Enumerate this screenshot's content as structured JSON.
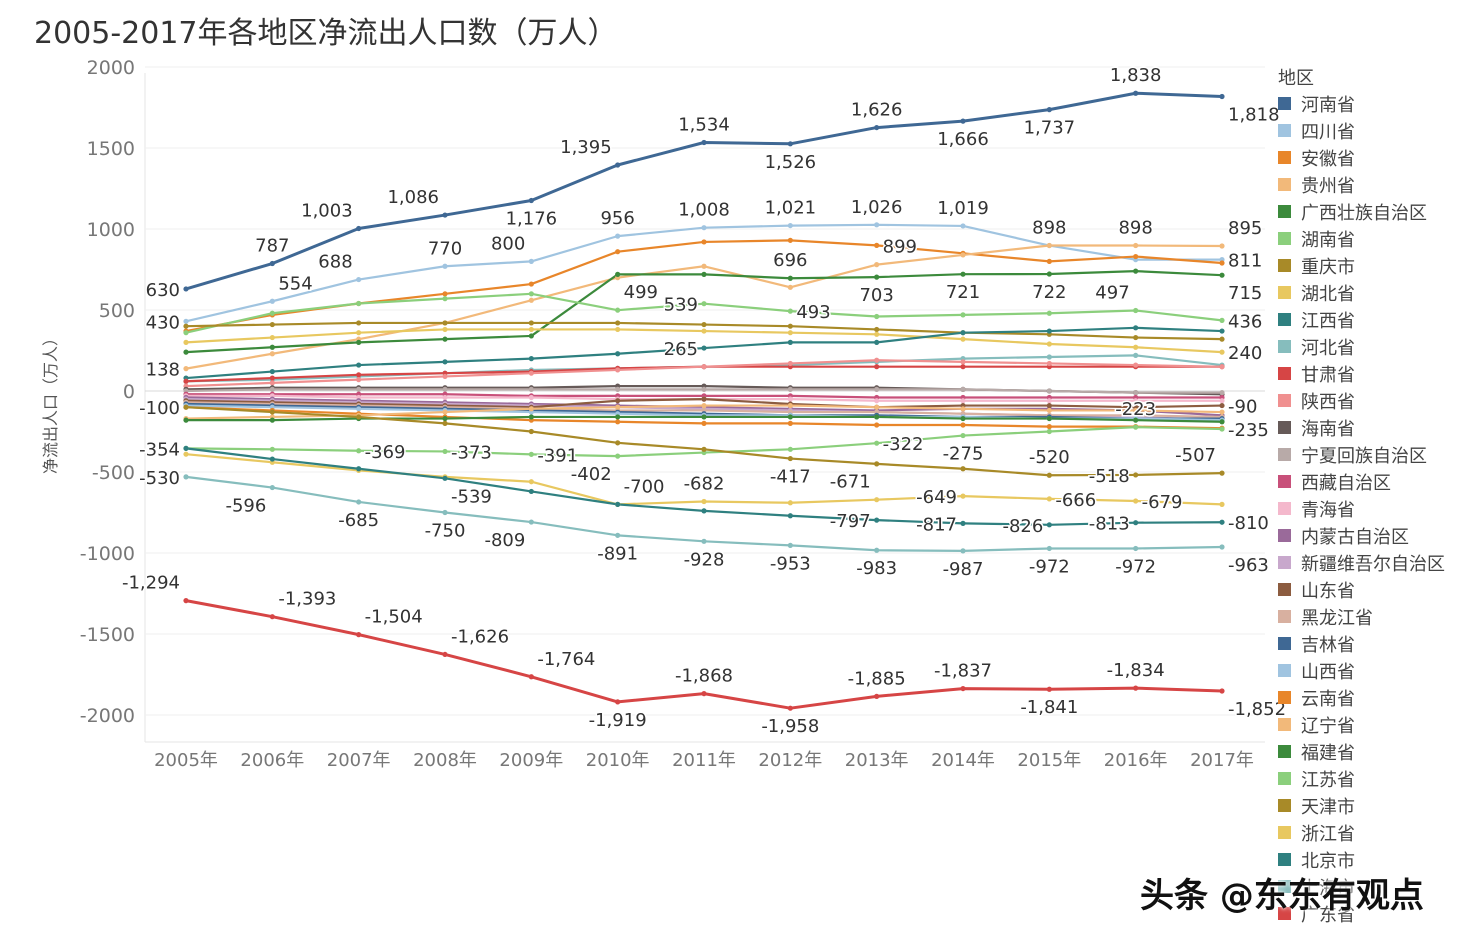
{
  "chart_data": {
    "type": "line",
    "title": "2005-2017年各地区净流出人口数（万人）",
    "ylabel": "净流出人口（万人）",
    "xlabel": "",
    "ylim": [
      -2100,
      2000
    ],
    "yticks": [
      2000,
      1500,
      1000,
      500,
      0,
      -500,
      -1000,
      -1500,
      -2000
    ],
    "grid": true,
    "legend_title": "地区",
    "legend_position": "right",
    "categories": [
      "2005年",
      "2006年",
      "2007年",
      "2008年",
      "2009年",
      "2010年",
      "2011年",
      "2012年",
      "2013年",
      "2014年",
      "2015年",
      "2016年",
      "2017年"
    ],
    "series": [
      {
        "name": "河南省",
        "color": "#3f6894",
        "values": [
          630,
          787,
          1003,
          1086,
          1176,
          1395,
          1534,
          1526,
          1626,
          1666,
          1737,
          1838,
          1818
        ]
      },
      {
        "name": "四川省",
        "color": "#a0c4e0",
        "values": [
          430,
          554,
          688,
          770,
          800,
          956,
          1008,
          1021,
          1026,
          1019,
          898,
          811,
          811
        ]
      },
      {
        "name": "安徽省",
        "color": "#e8862a",
        "values": [
          370,
          470,
          540,
          600,
          660,
          860,
          920,
          930,
          899,
          850,
          800,
          830,
          790
        ]
      },
      {
        "name": "贵州省",
        "color": "#f2b97a",
        "values": [
          138,
          230,
          320,
          420,
          560,
          700,
          770,
          640,
          780,
          840,
          898,
          898,
          895
        ]
      },
      {
        "name": "广西壮族自治区",
        "color": "#3c8a3c",
        "values": [
          240,
          270,
          300,
          320,
          340,
          720,
          720,
          696,
          703,
          721,
          722,
          740,
          715
        ]
      },
      {
        "name": "湖南省",
        "color": "#8bcf7c",
        "values": [
          360,
          480,
          540,
          570,
          600,
          499,
          539,
          493,
          460,
          470,
          480,
          497,
          436
        ]
      },
      {
        "name": "重庆市",
        "color": "#a88a28",
        "values": [
          400,
          410,
          420,
          420,
          420,
          420,
          410,
          400,
          380,
          360,
          350,
          330,
          320
        ]
      },
      {
        "name": "湖北省",
        "color": "#e8c860",
        "values": [
          300,
          330,
          360,
          380,
          380,
          380,
          370,
          360,
          350,
          320,
          290,
          270,
          240
        ]
      },
      {
        "name": "江西省",
        "color": "#2f8080",
        "values": [
          80,
          120,
          160,
          180,
          200,
          230,
          265,
          300,
          300,
          360,
          370,
          390,
          370
        ]
      },
      {
        "name": "河北省",
        "color": "#86bdbd",
        "values": [
          60,
          70,
          90,
          110,
          130,
          140,
          150,
          160,
          180,
          200,
          210,
          220,
          160
        ]
      },
      {
        "name": "甘肃省",
        "color": "#d64545",
        "values": [
          60,
          80,
          100,
          110,
          120,
          140,
          150,
          150,
          150,
          150,
          150,
          150,
          150
        ]
      },
      {
        "name": "陕西省",
        "color": "#f09090",
        "values": [
          30,
          50,
          70,
          90,
          110,
          130,
          150,
          170,
          190,
          180,
          170,
          160,
          150
        ]
      },
      {
        "name": "海南省",
        "color": "#665a58",
        "values": [
          10,
          20,
          20,
          20,
          20,
          30,
          30,
          20,
          20,
          10,
          0,
          -10,
          -20
        ]
      },
      {
        "name": "宁夏回族自治区",
        "color": "#b8aaa8",
        "values": [
          0,
          10,
          10,
          10,
          10,
          10,
          10,
          10,
          10,
          10,
          0,
          -10,
          -10
        ]
      },
      {
        "name": "西藏自治区",
        "color": "#c8507a",
        "values": [
          -20,
          -20,
          -20,
          -20,
          -30,
          -30,
          -30,
          -30,
          -40,
          -40,
          -40,
          -40,
          -40
        ]
      },
      {
        "name": "青海省",
        "color": "#f4b8cc",
        "values": [
          -30,
          -30,
          -40,
          -40,
          -40,
          -50,
          -50,
          -50,
          -60,
          -60,
          -60,
          -60,
          -60
        ]
      },
      {
        "name": "内蒙古自治区",
        "color": "#9a6a9a",
        "values": [
          -40,
          -50,
          -60,
          -70,
          -80,
          -90,
          -100,
          -110,
          -120,
          -110,
          -110,
          -120,
          -150
        ]
      },
      {
        "name": "新疆维吾尔自治区",
        "color": "#c8a8cc",
        "values": [
          -50,
          -60,
          -70,
          -80,
          -90,
          -100,
          -110,
          -120,
          -130,
          -140,
          -150,
          -160,
          -180
        ]
      },
      {
        "name": "山东省",
        "color": "#8c5c40",
        "values": [
          -60,
          -70,
          -80,
          -90,
          -100,
          -60,
          -50,
          -80,
          -100,
          -90,
          -90,
          -100,
          -90
        ]
      },
      {
        "name": "黑龙江省",
        "color": "#d8b0a0",
        "values": [
          -70,
          -80,
          -90,
          -100,
          -110,
          -120,
          -120,
          -130,
          -130,
          -140,
          -150,
          -150,
          -160
        ]
      },
      {
        "name": "吉林省",
        "color": "#3f6894",
        "values": [
          -80,
          -90,
          -100,
          -110,
          -120,
          -130,
          -140,
          -150,
          -150,
          -160,
          -160,
          -170,
          -170
        ]
      },
      {
        "name": "山西省",
        "color": "#a0c4e0",
        "values": [
          -90,
          -100,
          -110,
          -120,
          -130,
          -140,
          -150,
          -150,
          -160,
          -160,
          -170,
          -170,
          -180
        ]
      },
      {
        "name": "云南省",
        "color": "#e8862a",
        "values": [
          -100,
          -120,
          -140,
          -160,
          -180,
          -190,
          -200,
          -200,
          -210,
          -210,
          -220,
          -220,
          -230
        ]
      },
      {
        "name": "辽宁省",
        "color": "#f2b97a",
        "values": [
          -170,
          -160,
          -150,
          -130,
          -110,
          -100,
          -90,
          -90,
          -100,
          -110,
          -120,
          -120,
          -130
        ]
      },
      {
        "name": "福建省",
        "color": "#3c8a3c",
        "values": [
          -180,
          -180,
          -170,
          -170,
          -160,
          -160,
          -160,
          -160,
          -160,
          -170,
          -170,
          -180,
          -190
        ]
      },
      {
        "name": "江苏省",
        "color": "#8bcf7c",
        "values": [
          -354,
          -360,
          -369,
          -373,
          -391,
          -402,
          -380,
          -360,
          -322,
          -275,
          -250,
          -223,
          -235
        ]
      },
      {
        "name": "天津市",
        "color": "#a88a28",
        "values": [
          -100,
          -130,
          -160,
          -200,
          -250,
          -320,
          -360,
          -417,
          -450,
          -480,
          -520,
          -518,
          -507
        ]
      },
      {
        "name": "浙江省",
        "color": "#e8c860",
        "values": [
          -390,
          -440,
          -490,
          -530,
          -560,
          -700,
          -682,
          -690,
          -671,
          -649,
          -666,
          -679,
          -700
        ]
      },
      {
        "name": "北京市",
        "color": "#2f8080",
        "values": [
          -354,
          -420,
          -480,
          -539,
          -620,
          -700,
          -740,
          -770,
          -797,
          -817,
          -826,
          -813,
          -810
        ]
      },
      {
        "name": "上海市",
        "color": "#86bdbd",
        "values": [
          -530,
          -596,
          -685,
          -750,
          -809,
          -891,
          -928,
          -953,
          -983,
          -987,
          -972,
          -972,
          -963
        ]
      },
      {
        "name": "广东省",
        "color": "#d64545",
        "values": [
          -1294,
          -1393,
          -1504,
          -1626,
          -1764,
          -1919,
          -1868,
          -1958,
          -1885,
          -1837,
          -1841,
          -1834,
          -1852
        ]
      }
    ],
    "data_labels": [
      {
        "text": "630",
        "x": "2005年",
        "y": 630,
        "pos": "left"
      },
      {
        "text": "787",
        "x": "2006年",
        "y": 787,
        "pos": "above"
      },
      {
        "text": "1,003",
        "x": "2007年",
        "y": 1003,
        "pos": "above-left"
      },
      {
        "text": "1,086",
        "x": "2008年",
        "y": 1086,
        "pos": "above-left"
      },
      {
        "text": "1,395",
        "x": "2010年",
        "y": 1395,
        "pos": "above-left"
      },
      {
        "text": "1,534",
        "x": "2011年",
        "y": 1534,
        "pos": "above"
      },
      {
        "text": "1,526",
        "x": "2012年",
        "y": 1526,
        "pos": "below"
      },
      {
        "text": "1,626",
        "x": "2013年",
        "y": 1626,
        "pos": "above"
      },
      {
        "text": "1,666",
        "x": "2014年",
        "y": 1666,
        "pos": "below"
      },
      {
        "text": "1,737",
        "x": "2015年",
        "y": 1737,
        "pos": "below"
      },
      {
        "text": "1,838",
        "x": "2016年",
        "y": 1838,
        "pos": "above"
      },
      {
        "text": "1,818",
        "x": "2017年",
        "y": 1818,
        "pos": "below-right"
      },
      {
        "text": "430",
        "x": "2005年",
        "y": 430,
        "pos": "left"
      },
      {
        "text": "554",
        "x": "2006年",
        "y": 554,
        "pos": "above-right"
      },
      {
        "text": "688",
        "x": "2007年",
        "y": 688,
        "pos": "above-left"
      },
      {
        "text": "770",
        "x": "2008年",
        "y": 770,
        "pos": "above"
      },
      {
        "text": "800",
        "x": "2009年",
        "y": 800,
        "pos": "above-left"
      },
      {
        "text": "1,176",
        "x": "2009年",
        "y": 1176,
        "pos": "below"
      },
      {
        "text": "956",
        "x": "2010年",
        "y": 956,
        "pos": "above"
      },
      {
        "text": "1,008",
        "x": "2011年",
        "y": 1008,
        "pos": "above"
      },
      {
        "text": "1,021",
        "x": "2012年",
        "y": 1021,
        "pos": "above"
      },
      {
        "text": "1,026",
        "x": "2013年",
        "y": 1026,
        "pos": "above"
      },
      {
        "text": "1,019",
        "x": "2014年",
        "y": 1019,
        "pos": "above"
      },
      {
        "text": "898",
        "x": "2015年",
        "y": 898,
        "pos": "above"
      },
      {
        "text": "898",
        "x": "2016年",
        "y": 898,
        "pos": "above"
      },
      {
        "text": "895",
        "x": "2017年",
        "y": 895,
        "pos": "above-right"
      },
      {
        "text": "811",
        "x": "2017年",
        "y": 811,
        "pos": "right"
      },
      {
        "text": "899",
        "x": "2013年",
        "y": 899,
        "pos": "right"
      },
      {
        "text": "696",
        "x": "2012年",
        "y": 696,
        "pos": "above"
      },
      {
        "text": "703",
        "x": "2013年",
        "y": 703,
        "pos": "below"
      },
      {
        "text": "721",
        "x": "2014年",
        "y": 721,
        "pos": "below"
      },
      {
        "text": "722",
        "x": "2015年",
        "y": 722,
        "pos": "below"
      },
      {
        "text": "715",
        "x": "2017年",
        "y": 715,
        "pos": "below-right"
      },
      {
        "text": "499",
        "x": "2010年",
        "y": 499,
        "pos": "above-right"
      },
      {
        "text": "539",
        "x": "2011年",
        "y": 539,
        "pos": "left"
      },
      {
        "text": "493",
        "x": "2012年",
        "y": 493,
        "pos": "right"
      },
      {
        "text": "497",
        "x": "2016年",
        "y": 497,
        "pos": "above-left"
      },
      {
        "text": "436",
        "x": "2017年",
        "y": 436,
        "pos": "right"
      },
      {
        "text": "265",
        "x": "2011年",
        "y": 265,
        "pos": "left"
      },
      {
        "text": "240",
        "x": "2017年",
        "y": 240,
        "pos": "right"
      },
      {
        "text": "138",
        "x": "2005年",
        "y": 138,
        "pos": "left"
      },
      {
        "text": "-100",
        "x": "2005年",
        "y": -100,
        "pos": "left"
      },
      {
        "text": "-90",
        "x": "2017年",
        "y": -90,
        "pos": "right"
      },
      {
        "text": "-354",
        "x": "2005年",
        "y": -354,
        "pos": "left"
      },
      {
        "text": "-369",
        "x": "2007年",
        "y": -369,
        "pos": "right"
      },
      {
        "text": "-373",
        "x": "2008年",
        "y": -373,
        "pos": "right"
      },
      {
        "text": "-391",
        "x": "2009年",
        "y": -391,
        "pos": "right"
      },
      {
        "text": "-402",
        "x": "2010年",
        "y": -402,
        "pos": "below-left"
      },
      {
        "text": "-322",
        "x": "2013年",
        "y": -322,
        "pos": "right"
      },
      {
        "text": "-275",
        "x": "2014年",
        "y": -275,
        "pos": "below"
      },
      {
        "text": "-223",
        "x": "2016年",
        "y": -223,
        "pos": "above"
      },
      {
        "text": "-235",
        "x": "2017年",
        "y": -235,
        "pos": "right"
      },
      {
        "text": "-417",
        "x": "2012年",
        "y": -417,
        "pos": "below"
      },
      {
        "text": "-520",
        "x": "2015年",
        "y": -520,
        "pos": "above"
      },
      {
        "text": "-518",
        "x": "2016年",
        "y": -518,
        "pos": "left"
      },
      {
        "text": "-507",
        "x": "2017年",
        "y": -507,
        "pos": "above-left"
      },
      {
        "text": "-530",
        "x": "2005年",
        "y": -530,
        "pos": "left"
      },
      {
        "text": "-700",
        "x": "2010年",
        "y": -700,
        "pos": "above-right"
      },
      {
        "text": "-682",
        "x": "2011年",
        "y": -682,
        "pos": "above"
      },
      {
        "text": "-671",
        "x": "2013年",
        "y": -671,
        "pos": "above-left"
      },
      {
        "text": "-649",
        "x": "2014年",
        "y": -649,
        "pos": "left"
      },
      {
        "text": "-666",
        "x": "2015年",
        "y": -666,
        "pos": "right"
      },
      {
        "text": "-679",
        "x": "2016年",
        "y": -679,
        "pos": "right"
      },
      {
        "text": "-539",
        "x": "2008年",
        "y": -539,
        "pos": "below-right"
      },
      {
        "text": "-797",
        "x": "2013年",
        "y": -797,
        "pos": "left"
      },
      {
        "text": "-817",
        "x": "2014年",
        "y": -817,
        "pos": "left"
      },
      {
        "text": "-826",
        "x": "2015年",
        "y": -826,
        "pos": "left"
      },
      {
        "text": "-813",
        "x": "2016年",
        "y": -813,
        "pos": "left"
      },
      {
        "text": "-810",
        "x": "2017年",
        "y": -810,
        "pos": "right"
      },
      {
        "text": "-596",
        "x": "2006年",
        "y": -596,
        "pos": "below-left"
      },
      {
        "text": "-685",
        "x": "2007年",
        "y": -685,
        "pos": "below"
      },
      {
        "text": "-750",
        "x": "2008年",
        "y": -750,
        "pos": "below"
      },
      {
        "text": "-809",
        "x": "2009年",
        "y": -809,
        "pos": "below-left"
      },
      {
        "text": "-891",
        "x": "2010年",
        "y": -891,
        "pos": "below"
      },
      {
        "text": "-928",
        "x": "2011年",
        "y": -928,
        "pos": "below"
      },
      {
        "text": "-953",
        "x": "2012年",
        "y": -953,
        "pos": "below"
      },
      {
        "text": "-983",
        "x": "2013年",
        "y": -983,
        "pos": "below"
      },
      {
        "text": "-987",
        "x": "2014年",
        "y": -987,
        "pos": "below"
      },
      {
        "text": "-972",
        "x": "2015年",
        "y": -972,
        "pos": "below"
      },
      {
        "text": "-972",
        "x": "2016年",
        "y": -972,
        "pos": "below"
      },
      {
        "text": "-963",
        "x": "2017年",
        "y": -963,
        "pos": "below-right"
      },
      {
        "text": "-1,294",
        "x": "2005年",
        "y": -1294,
        "pos": "above-left"
      },
      {
        "text": "-1,393",
        "x": "2006年",
        "y": -1393,
        "pos": "above-right"
      },
      {
        "text": "-1,504",
        "x": "2007年",
        "y": -1504,
        "pos": "above-right"
      },
      {
        "text": "-1,626",
        "x": "2008年",
        "y": -1626,
        "pos": "above-right"
      },
      {
        "text": "-1,764",
        "x": "2009年",
        "y": -1764,
        "pos": "above-right"
      },
      {
        "text": "-1,919",
        "x": "2010年",
        "y": -1919,
        "pos": "below"
      },
      {
        "text": "-1,868",
        "x": "2011年",
        "y": -1868,
        "pos": "above"
      },
      {
        "text": "-1,958",
        "x": "2012年",
        "y": -1958,
        "pos": "below"
      },
      {
        "text": "-1,885",
        "x": "2013年",
        "y": -1885,
        "pos": "above"
      },
      {
        "text": "-1,837",
        "x": "2014年",
        "y": -1837,
        "pos": "above"
      },
      {
        "text": "-1,841",
        "x": "2015年",
        "y": -1841,
        "pos": "below"
      },
      {
        "text": "-1,834",
        "x": "2016年",
        "y": -1834,
        "pos": "above"
      },
      {
        "text": "-1,852",
        "x": "2017年",
        "y": -1852,
        "pos": "below-right"
      }
    ]
  },
  "watermark": "头条 @东东有观点"
}
